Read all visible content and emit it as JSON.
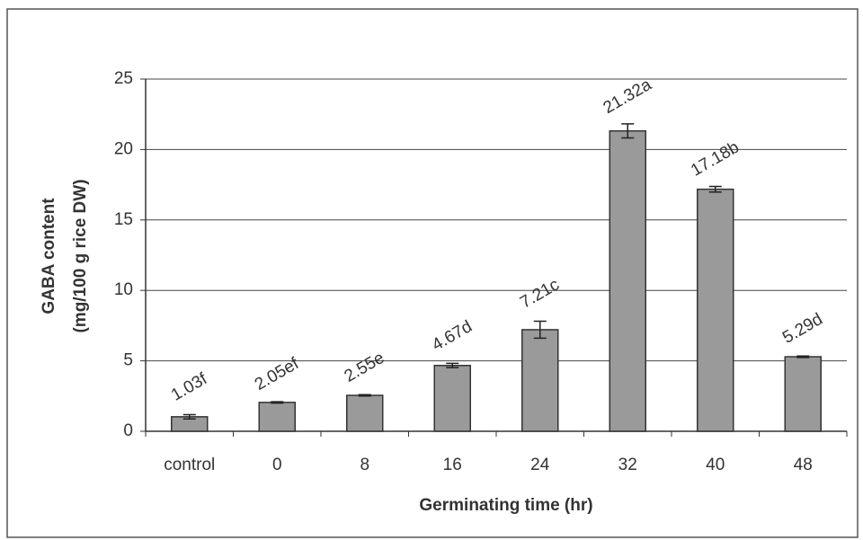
{
  "chart_data": {
    "type": "bar",
    "ylabel": [
      "GABA content",
      "(mg/100 g rice DW)"
    ],
    "xlabel": "Germinating time (hr)",
    "categories": [
      "control",
      "0",
      "8",
      "16",
      "24",
      "32",
      "40",
      "48"
    ],
    "values": [
      1.03,
      2.05,
      2.55,
      4.67,
      7.21,
      21.32,
      17.18,
      5.29
    ],
    "errors": [
      0.15,
      0.05,
      0.05,
      0.15,
      0.6,
      0.5,
      0.2,
      0.05
    ],
    "value_labels": [
      "1.03f",
      "2.05ef",
      "2.55e",
      "4.67d",
      "7.21c",
      "21.32a",
      "17.18b",
      "5.29d"
    ],
    "color": "#9a9a9a",
    "ylim": [
      0,
      25
    ],
    "yticks": [
      0,
      5,
      10,
      15,
      20,
      25
    ],
    "grid": true
  }
}
